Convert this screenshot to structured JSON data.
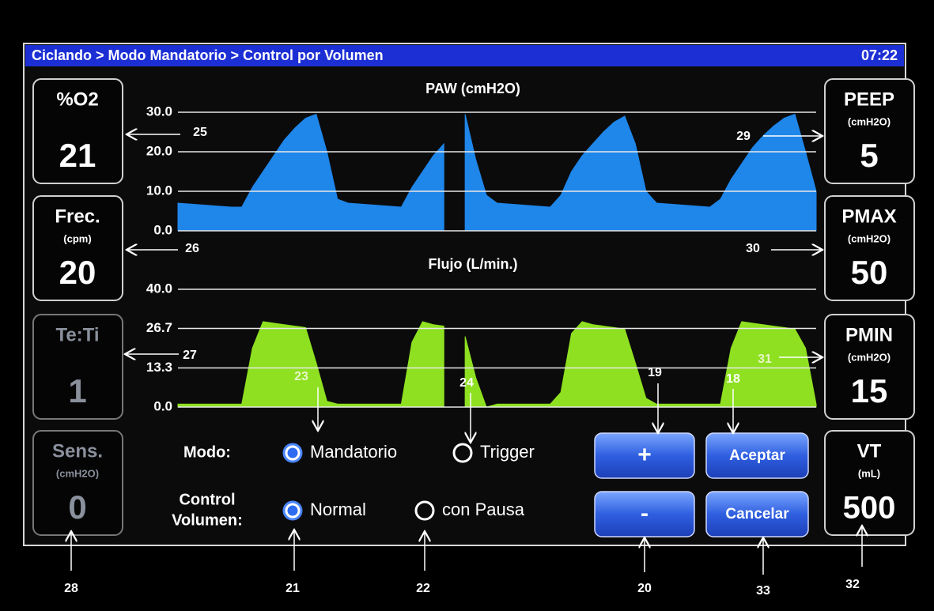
{
  "header": {
    "title": "Ciclando > Modo Mandatorio > Control por Volumen",
    "time": "07:22"
  },
  "left_panels": [
    {
      "label": "%O2",
      "value": 21,
      "enabled": true
    },
    {
      "label": "Frec.",
      "unit": "(cpm)",
      "value": 20,
      "enabled": true
    },
    {
      "label": "Te:Ti",
      "value": 1,
      "enabled": false
    },
    {
      "label": "Sens.",
      "unit": "(cmH2O)",
      "value": 0,
      "enabled": false
    }
  ],
  "right_panels": [
    {
      "label": "PEEP",
      "unit": "(cmH2O)",
      "value": 5,
      "enabled": true
    },
    {
      "label": "PMAX",
      "unit": "(cmH2O)",
      "value": 50,
      "enabled": true
    },
    {
      "label": "PMIN",
      "unit": "(cmH2O)",
      "value": 15,
      "enabled": true
    },
    {
      "label": "VT",
      "unit": "(mL)",
      "value": 500,
      "enabled": true
    }
  ],
  "chart_data": [
    {
      "type": "area",
      "title": "PAW (cmH2O)",
      "color": "#1f86ea",
      "ylim": [
        0,
        30
      ],
      "grid": true,
      "yticks": [
        {
          "value": 0,
          "label": "0.0"
        },
        {
          "value": 10,
          "label": "10.0"
        },
        {
          "value": 20,
          "label": "20.0"
        },
        {
          "value": 30,
          "label": "30.0"
        }
      ],
      "values": [
        7,
        6.8,
        6.6,
        6.4,
        6.2,
        6,
        6,
        11,
        15,
        19,
        23,
        26,
        28.5,
        29.5,
        20,
        8,
        7,
        6.8,
        6.6,
        6.4,
        6.2,
        6,
        11,
        15,
        19,
        22,
        null,
        29.5,
        18,
        9,
        7,
        6.8,
        6.6,
        6.4,
        6.2,
        6,
        9,
        15,
        19,
        22,
        25,
        27.5,
        29,
        22,
        10,
        7,
        6.8,
        6.6,
        6.4,
        6.2,
        6,
        8,
        13,
        17,
        21,
        24,
        26.5,
        28.5,
        29.5,
        20,
        10
      ]
    },
    {
      "type": "area",
      "title": "Flujo (L/min.)",
      "color": "#8ee021",
      "ylim": [
        0,
        40
      ],
      "grid": true,
      "yticks": [
        {
          "value": 0,
          "label": "0.0"
        },
        13.3,
        26.7,
        {
          "value": 40,
          "label": "40.0"
        }
      ],
      "values": [
        1,
        1,
        1,
        1,
        1,
        1,
        1,
        20,
        29,
        28.5,
        28,
        27.5,
        27,
        15,
        2,
        1,
        1,
        1,
        1,
        1,
        1,
        1,
        22,
        29,
        28,
        27.5,
        null,
        24,
        10,
        0,
        1,
        1,
        1,
        1,
        1,
        1,
        5,
        25,
        29,
        28,
        27.5,
        27,
        26.5,
        15,
        3,
        1,
        1,
        1,
        1,
        1,
        1,
        1,
        20,
        29,
        28.5,
        28,
        27.5,
        27,
        26.5,
        20,
        1
      ]
    }
  ],
  "controls": {
    "mode": {
      "label": [
        "Modo:"
      ],
      "options": [
        {
          "label": "Mandatorio",
          "selected": true
        },
        {
          "label": "Trigger",
          "selected": false
        }
      ]
    },
    "volume_control": {
      "label": [
        "Control",
        "Volumen:"
      ],
      "options": [
        {
          "label": "Normal",
          "selected": true
        },
        {
          "label": "con Pausa",
          "selected": false
        }
      ]
    },
    "buttons": [
      "+",
      "-",
      "Aceptar",
      "Cancelar"
    ]
  },
  "annotations": [
    "25",
    "26",
    "27",
    "28",
    "29",
    "30",
    "31",
    "23",
    "24",
    "19",
    "18",
    "21",
    "22",
    "20",
    "33",
    "32"
  ]
}
